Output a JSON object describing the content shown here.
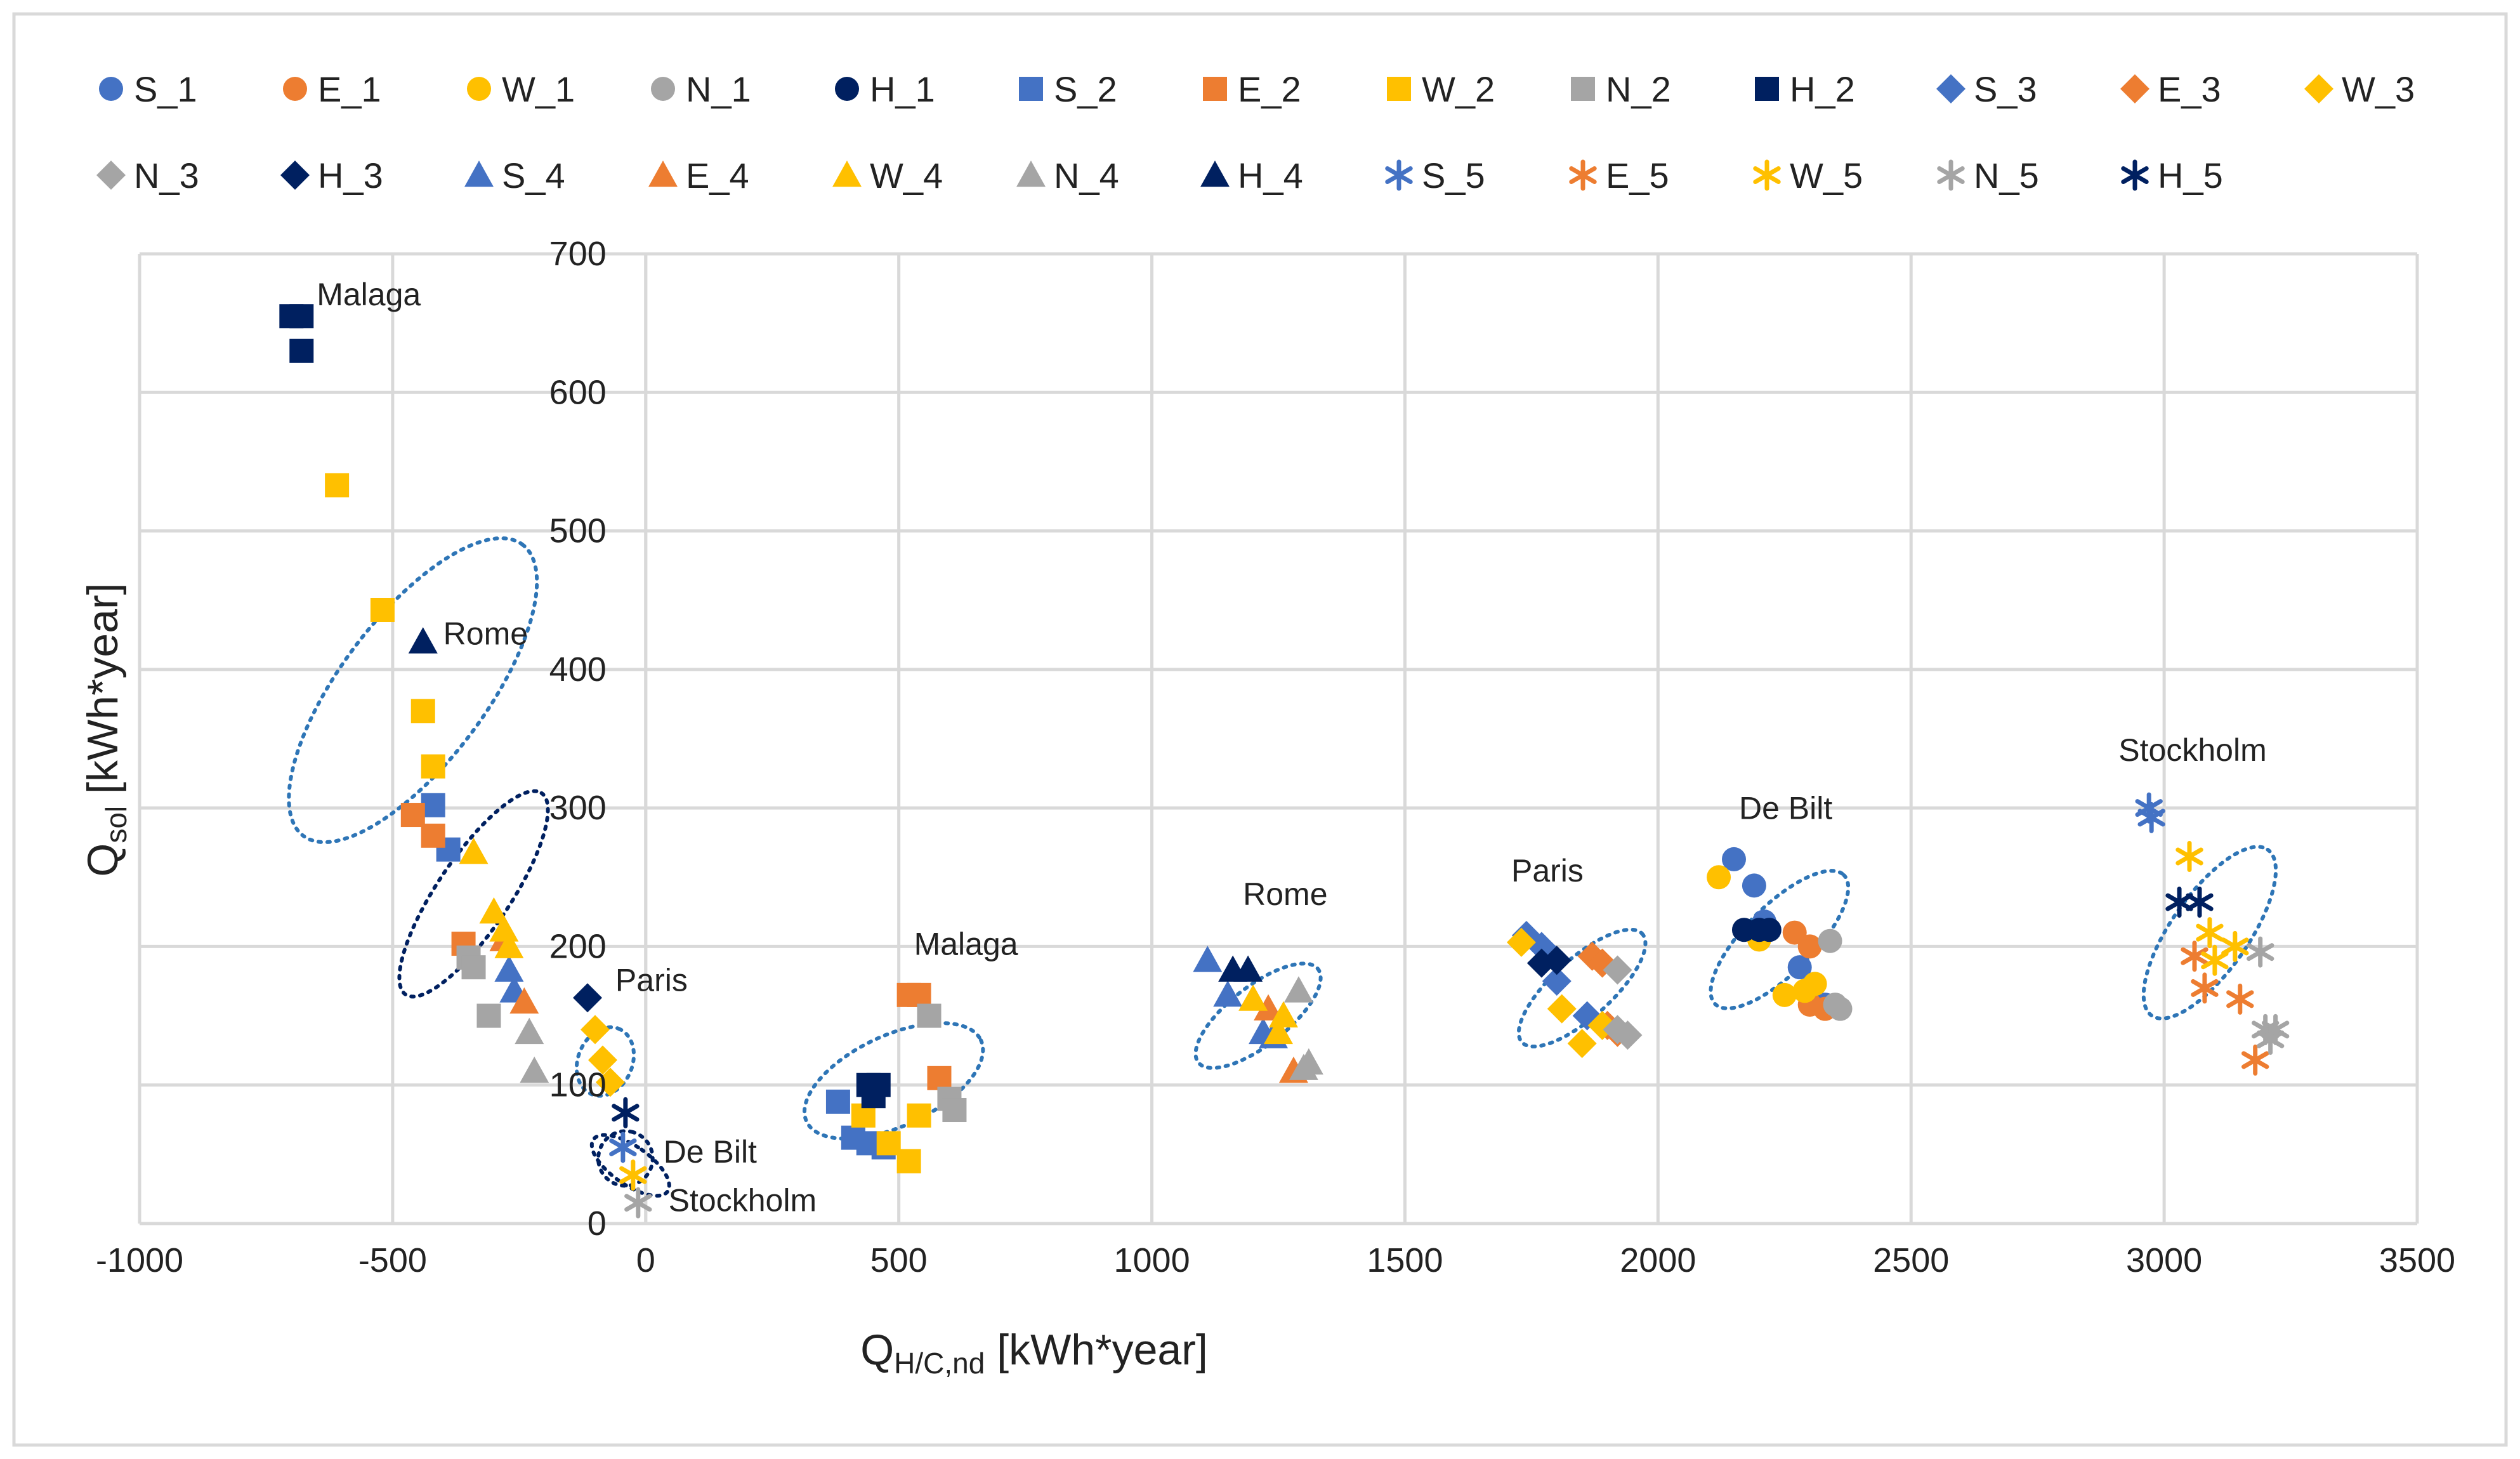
{
  "chart_data": {
    "type": "scatter",
    "title": "",
    "xlabel": {
      "main": "Q",
      "sub": "H/C,nd",
      "rest": " [kWh*year]"
    },
    "ylabel": {
      "main": "Q",
      "sub": "sol",
      "rest": " [kWh*year]"
    },
    "xlim": [
      -1000,
      3500
    ],
    "ylim": [
      0,
      700
    ],
    "x_ticks": [
      -1000,
      -500,
      0,
      500,
      1000,
      1500,
      2000,
      2500,
      3000,
      3500
    ],
    "y_ticks": [
      0,
      100,
      200,
      300,
      400,
      500,
      600,
      700
    ],
    "grid": true,
    "legend_position": "top",
    "colors": {
      "S": "#4472c4",
      "E": "#ed7d31",
      "W": "#ffc000",
      "N": "#a5a5a5",
      "H": "#002060",
      "ellipse": "#2e75b6",
      "frame": "#d9d9d9"
    },
    "series": [
      {
        "name": "S_1",
        "marker": "circle",
        "color": "#4472c4",
        "points": [
          [
            2150,
            263
          ],
          [
            2190,
            244
          ],
          [
            2210,
            218
          ],
          [
            2280,
            185
          ],
          [
            2330,
            158
          ]
        ]
      },
      {
        "name": "E_1",
        "marker": "circle",
        "color": "#ed7d31",
        "points": [
          [
            2270,
            210
          ],
          [
            2300,
            200
          ],
          [
            2300,
            158
          ],
          [
            2330,
            155
          ]
        ]
      },
      {
        "name": "W_1",
        "marker": "circle",
        "color": "#ffc000",
        "points": [
          [
            2120,
            250
          ],
          [
            2200,
            205
          ],
          [
            2290,
            168
          ],
          [
            2310,
            173
          ],
          [
            2250,
            165
          ]
        ]
      },
      {
        "name": "N_1",
        "marker": "circle",
        "color": "#a5a5a5",
        "points": [
          [
            2340,
            204
          ],
          [
            2350,
            158
          ],
          [
            2360,
            155
          ]
        ]
      },
      {
        "name": "H_1",
        "marker": "circle",
        "color": "#002060",
        "points": [
          [
            2170,
            212
          ],
          [
            2200,
            212
          ],
          [
            2220,
            212
          ]
        ]
      },
      {
        "name": "S_2",
        "marker": "square",
        "color": "#4472c4",
        "points": [
          [
            -420,
            302
          ],
          [
            -390,
            270
          ],
          [
            380,
            88
          ],
          [
            410,
            62
          ],
          [
            440,
            58
          ],
          [
            470,
            55
          ]
        ]
      },
      {
        "name": "E_2",
        "marker": "square",
        "color": "#ed7d31",
        "points": [
          [
            -460,
            295
          ],
          [
            -420,
            280
          ],
          [
            -360,
            202
          ],
          [
            520,
            165
          ],
          [
            540,
            165
          ],
          [
            580,
            105
          ]
        ]
      },
      {
        "name": "W_2",
        "marker": "square",
        "color": "#ffc000",
        "points": [
          [
            -610,
            533
          ],
          [
            -520,
            443
          ],
          [
            -440,
            370
          ],
          [
            -420,
            330
          ],
          [
            430,
            78
          ],
          [
            480,
            58
          ],
          [
            520,
            45
          ],
          [
            540,
            78
          ]
        ]
      },
      {
        "name": "N_2",
        "marker": "square",
        "color": "#a5a5a5",
        "points": [
          [
            -350,
            192
          ],
          [
            -340,
            185
          ],
          [
            -310,
            150
          ],
          [
            560,
            150
          ],
          [
            600,
            90
          ],
          [
            610,
            82
          ]
        ]
      },
      {
        "name": "H_2",
        "marker": "square",
        "color": "#002060",
        "points": [
          [
            -700,
            655
          ],
          [
            -680,
            655
          ],
          [
            -680,
            630
          ],
          [
            440,
            100
          ],
          [
            460,
            100
          ],
          [
            450,
            92
          ]
        ]
      },
      {
        "name": "S_3",
        "marker": "diamond",
        "color": "#4472c4",
        "points": [
          [
            1770,
            200
          ],
          [
            1800,
            175
          ],
          [
            1860,
            150
          ],
          [
            1740,
            208
          ]
        ]
      },
      {
        "name": "E_3",
        "marker": "diamond",
        "color": "#ed7d31",
        "points": [
          [
            1870,
            193
          ],
          [
            1890,
            188
          ],
          [
            1900,
            143
          ],
          [
            1920,
            138
          ]
        ]
      },
      {
        "name": "W_3",
        "marker": "diamond",
        "color": "#ffc000",
        "points": [
          [
            -100,
            140
          ],
          [
            -85,
            118
          ],
          [
            -70,
            102
          ],
          [
            1730,
            203
          ],
          [
            1810,
            155
          ],
          [
            1850,
            130
          ],
          [
            1890,
            143
          ]
        ]
      },
      {
        "name": "N_3",
        "marker": "diamond",
        "color": "#a5a5a5",
        "points": [
          [
            1920,
            183
          ],
          [
            1920,
            140
          ],
          [
            1940,
            136
          ]
        ]
      },
      {
        "name": "H_3",
        "marker": "diamond",
        "color": "#002060",
        "points": [
          [
            -115,
            163
          ],
          [
            1770,
            188
          ],
          [
            1800,
            190
          ]
        ]
      },
      {
        "name": "S_4",
        "marker": "triangle",
        "color": "#4472c4",
        "points": [
          [
            -270,
            183
          ],
          [
            -260,
            168
          ],
          [
            1110,
            190
          ],
          [
            1150,
            165
          ],
          [
            1220,
            138
          ],
          [
            1240,
            135
          ]
        ]
      },
      {
        "name": "E_4",
        "marker": "triangle",
        "color": "#ed7d31",
        "points": [
          [
            -280,
            205
          ],
          [
            -240,
            160
          ],
          [
            1230,
            155
          ],
          [
            1280,
            110
          ]
        ]
      },
      {
        "name": "W_4",
        "marker": "triangle",
        "color": "#ffc000",
        "points": [
          [
            -340,
            268
          ],
          [
            -300,
            225
          ],
          [
            -280,
            212
          ],
          [
            -270,
            200
          ],
          [
            1200,
            162
          ],
          [
            1260,
            150
          ],
          [
            1250,
            138
          ]
        ]
      },
      {
        "name": "N_4",
        "marker": "triangle",
        "color": "#a5a5a5",
        "points": [
          [
            -230,
            138
          ],
          [
            -220,
            110
          ],
          [
            1290,
            168
          ],
          [
            1300,
            112
          ],
          [
            1310,
            116
          ]
        ]
      },
      {
        "name": "H_4",
        "marker": "triangle",
        "color": "#002060",
        "points": [
          [
            -440,
            420
          ],
          [
            1160,
            183
          ],
          [
            1190,
            183
          ]
        ]
      },
      {
        "name": "S_5",
        "marker": "star",
        "color": "#4472c4",
        "points": [
          [
            2970,
            300
          ],
          [
            2975,
            293
          ],
          [
            -45,
            55
          ]
        ]
      },
      {
        "name": "E_5",
        "marker": "star",
        "color": "#ed7d31",
        "points": [
          [
            3060,
            193
          ],
          [
            3080,
            170
          ],
          [
            3150,
            162
          ],
          [
            3180,
            118
          ]
        ]
      },
      {
        "name": "W_5",
        "marker": "star",
        "color": "#ffc000",
        "points": [
          [
            3050,
            265
          ],
          [
            3090,
            210
          ],
          [
            3100,
            190
          ],
          [
            3140,
            200
          ],
          [
            -25,
            35
          ]
        ]
      },
      {
        "name": "N_5",
        "marker": "star",
        "color": "#a5a5a5",
        "points": [
          [
            3190,
            196
          ],
          [
            3200,
            140
          ],
          [
            3220,
            140
          ],
          [
            3210,
            133
          ],
          [
            -15,
            15
          ]
        ]
      },
      {
        "name": "H_5",
        "marker": "star",
        "color": "#002060",
        "points": [
          [
            3030,
            232
          ],
          [
            3070,
            232
          ],
          [
            -40,
            80
          ]
        ]
      }
    ],
    "annotations": [
      {
        "text": "Malaga",
        "x": -650,
        "y": 663
      },
      {
        "text": "Rome",
        "x": -400,
        "y": 418
      },
      {
        "text": "Paris",
        "x": -60,
        "y": 168
      },
      {
        "text": "De Bilt",
        "x": 35,
        "y": 44
      },
      {
        "text": "Stockholm",
        "x": 45,
        "y": 9
      },
      {
        "text": "Malaga",
        "x": 530,
        "y": 194
      },
      {
        "text": "Rome",
        "x": 1180,
        "y": 230
      },
      {
        "text": "Paris",
        "x": 1710,
        "y": 247
      },
      {
        "text": "De Bilt",
        "x": 2160,
        "y": 292
      },
      {
        "text": "Stockholm",
        "x": 2910,
        "y": 334
      }
    ],
    "cluster_ellipses": [
      {
        "cx": -460,
        "cy": 385,
        "rx": 360,
        "ry": 32,
        "angle": 53,
        "color": "#2e75b6"
      },
      {
        "cx": -340,
        "cy": 238,
        "rx": 240,
        "ry": 16,
        "angle": 56,
        "color": "#002060"
      },
      {
        "cx": -80,
        "cy": 117,
        "rx": 70,
        "ry": 12,
        "angle": 67,
        "color": "#2e75b6"
      },
      {
        "cx": -40,
        "cy": 47,
        "rx": 54,
        "ry": 12,
        "angle": 76,
        "color": "#002060"
      },
      {
        "cx": -30,
        "cy": 42,
        "rx": 38,
        "ry": 20,
        "angle": 55,
        "color": "#002060"
      },
      {
        "cx": 490,
        "cy": 103,
        "rx": 190,
        "ry": 20,
        "angle": 25,
        "color": "#2e75b6"
      },
      {
        "cx": 1210,
        "cy": 150,
        "rx": 150,
        "ry": 13,
        "angle": 38,
        "color": "#2e75b6"
      },
      {
        "cx": 1850,
        "cy": 170,
        "rx": 160,
        "ry": 13,
        "angle": 42,
        "color": "#2e75b6"
      },
      {
        "cx": 2240,
        "cy": 205,
        "rx": 180,
        "ry": 15,
        "angle": 45,
        "color": "#2e75b6"
      },
      {
        "cx": 3090,
        "cy": 210,
        "rx": 200,
        "ry": 17,
        "angle": 55,
        "color": "#2e75b6"
      }
    ]
  }
}
